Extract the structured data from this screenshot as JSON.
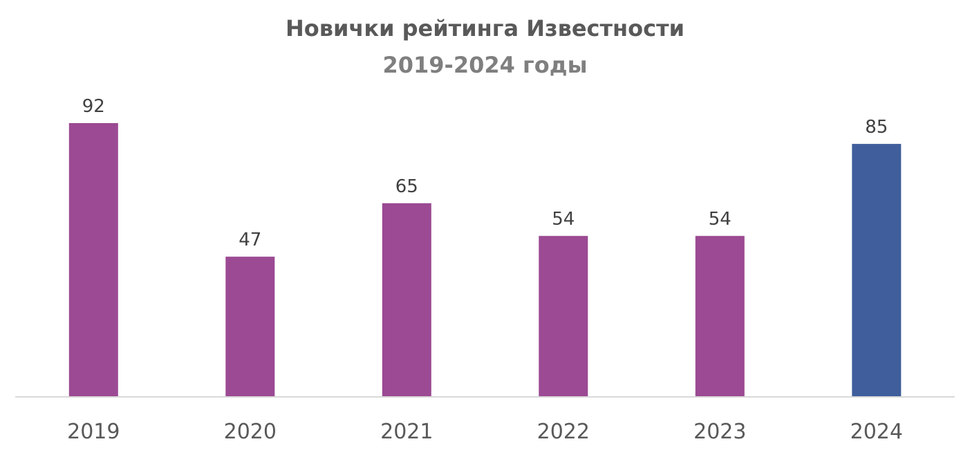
{
  "chart_data": {
    "type": "bar",
    "title": "Новички рейтинга Известности",
    "subtitle": "2019-2024 годы",
    "categories": [
      "2019",
      "2020",
      "2021",
      "2022",
      "2023",
      "2024"
    ],
    "values": [
      92,
      47,
      65,
      54,
      54,
      85
    ],
    "data_labels": [
      "92",
      "47",
      "65",
      "54",
      "54",
      "85"
    ],
    "bar_colors": [
      "#9b4a93",
      "#9b4a93",
      "#9b4a93",
      "#9b4a93",
      "#9b4a93",
      "#3f5e9b"
    ],
    "axis_color": "#d9d9d9",
    "ylim": [
      0,
      92
    ],
    "grid": false,
    "legend": "none",
    "xlabel": "",
    "ylabel": ""
  }
}
